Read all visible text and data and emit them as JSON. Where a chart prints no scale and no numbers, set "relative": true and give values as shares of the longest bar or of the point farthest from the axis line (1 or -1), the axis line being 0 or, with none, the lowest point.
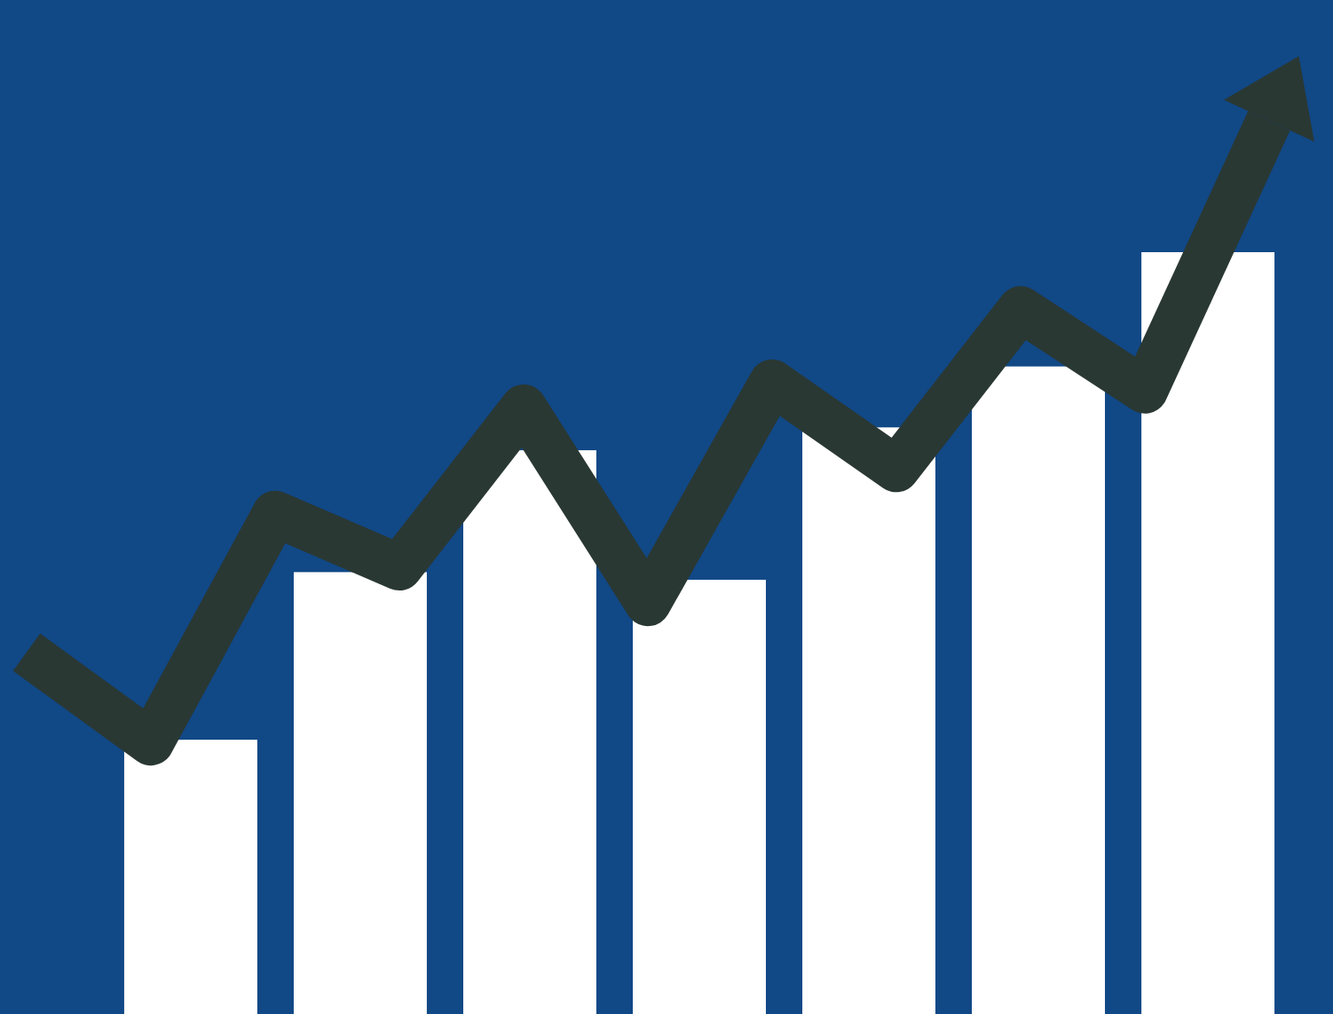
{
  "chart_data": [
    {
      "type": "bar",
      "relative": true,
      "categories": [
        null,
        null,
        null,
        null,
        null,
        null,
        null
      ],
      "values": [
        0.36,
        0.58,
        0.74,
        0.57,
        0.77,
        0.85,
        1
      ],
      "color": "#ffffff"
    },
    {
      "type": "line",
      "relative": true,
      "categories": [
        null,
        null,
        null,
        null,
        null,
        null,
        null,
        null,
        null,
        null,
        null
      ],
      "values": [
        0.405,
        0.304,
        0.56,
        0.5,
        0.679,
        0.46,
        0.707,
        0.61,
        0.789,
        0.698,
        1
      ],
      "color": "#2a3833"
    }
  ]
}
